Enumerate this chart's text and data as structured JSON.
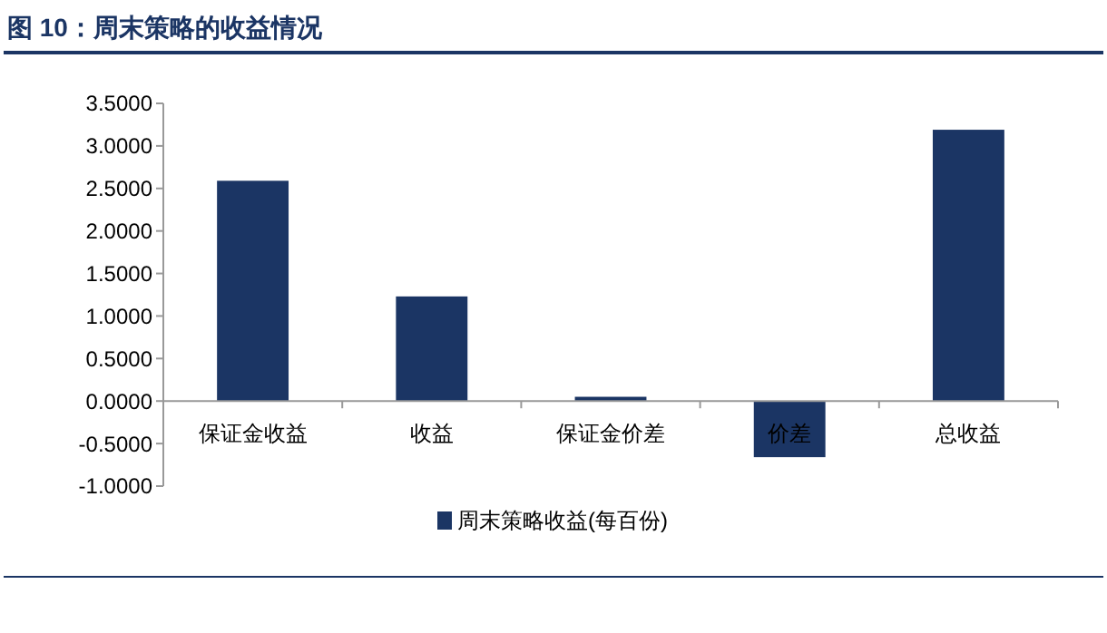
{
  "chart_data": {
    "type": "bar",
    "title": "图 10：周末策略的收益情况",
    "categories": [
      "保证金收益",
      "收益",
      "保证金价差",
      "价差",
      "总收益"
    ],
    "series": [
      {
        "name": "周末策略收益(每百份)",
        "color": "#1b3564",
        "values": [
          2.59,
          1.23,
          0.05,
          -0.66,
          3.19
        ]
      }
    ],
    "ylim": [
      -1,
      3.5
    ],
    "yticks": [
      {
        "value": -1,
        "label": "-1.0000"
      },
      {
        "value": -0.5,
        "label": "-0.5000"
      },
      {
        "value": 0,
        "label": "0.0000"
      },
      {
        "value": 0.5,
        "label": "0.5000"
      },
      {
        "value": 1,
        "label": "1.0000"
      },
      {
        "value": 1.5,
        "label": "1.5000"
      },
      {
        "value": 2,
        "label": "2.0000"
      },
      {
        "value": 2.5,
        "label": "2.5000"
      },
      {
        "value": 3,
        "label": "3.0000"
      },
      {
        "value": 3.5,
        "label": "3.5000"
      }
    ],
    "legend": "bottom"
  }
}
